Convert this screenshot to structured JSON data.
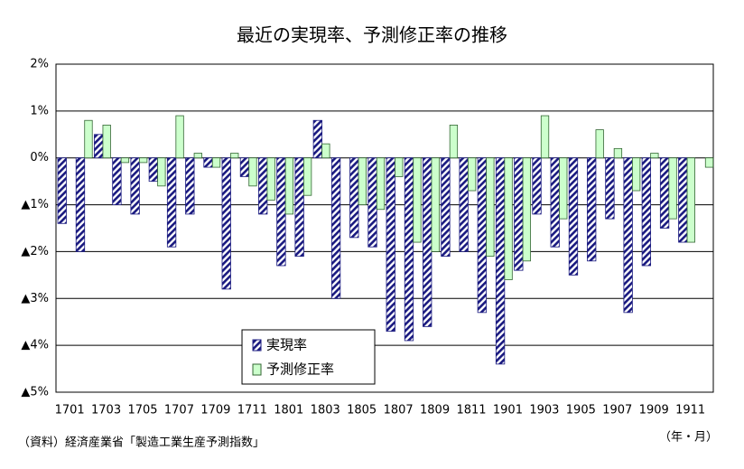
{
  "chart_data": {
    "type": "bar",
    "title": "最近の実現率、予測修正率の推移",
    "categories": [
      "1701",
      null,
      "1703",
      null,
      "1705",
      null,
      "1707",
      null,
      "1709",
      null,
      "1711",
      null,
      "1801",
      null,
      "1803",
      null,
      "1805",
      null,
      "1807",
      null,
      "1809",
      null,
      "1811",
      null,
      "1901",
      null,
      "1903",
      null,
      "1905",
      null,
      "1907",
      null,
      "1909",
      null,
      "1911",
      null
    ],
    "series": [
      {
        "name": "実現率",
        "color": "#1a1a80",
        "pattern": "hatch",
        "values": [
          -1.4,
          -2.0,
          0.5,
          -1.0,
          -1.2,
          -0.5,
          -1.9,
          -1.2,
          -0.2,
          -2.8,
          -0.4,
          -1.2,
          -2.3,
          -2.1,
          0.8,
          -3.0,
          -1.7,
          -1.9,
          -3.7,
          -3.9,
          -3.6,
          -2.1,
          -2.0,
          -3.3,
          -4.4,
          -2.4,
          -1.2,
          -1.9,
          -2.5,
          -2.2,
          -1.3,
          -3.3,
          -2.3,
          -1.5,
          -1.8,
          null
        ]
      },
      {
        "name": "予測修正率",
        "color": "#ccffcc",
        "values": [
          0,
          0.8,
          0.7,
          -0.1,
          -0.1,
          -0.6,
          0.9,
          0.1,
          -0.2,
          0.1,
          -0.6,
          -0.9,
          -1.2,
          -0.8,
          0.3,
          0,
          -1.0,
          -1.1,
          -0.4,
          -1.8,
          -2.0,
          0.7,
          -0.7,
          -2.1,
          -2.6,
          -2.2,
          0.9,
          -1.3,
          0,
          0.6,
          0.2,
          -0.7,
          0.1,
          -1.3,
          -1.8,
          -0.2
        ]
      }
    ],
    "ylim": [
      -5,
      2
    ],
    "yticks": [
      {
        "value": 2,
        "label": "2%"
      },
      {
        "value": 1,
        "label": "1%"
      },
      {
        "value": 0,
        "label": "0%"
      },
      {
        "value": -1,
        "label": "▲1%"
      },
      {
        "value": -2,
        "label": "▲2%"
      },
      {
        "value": -3,
        "label": "▲3%"
      },
      {
        "value": -4,
        "label": "▲4%"
      },
      {
        "value": -5,
        "label": "▲5%"
      }
    ],
    "grid": true,
    "legend": "lower-center",
    "x_label": "（年・月）",
    "source": "（資料）経済産業省「製造工業生産予測指数」"
  }
}
